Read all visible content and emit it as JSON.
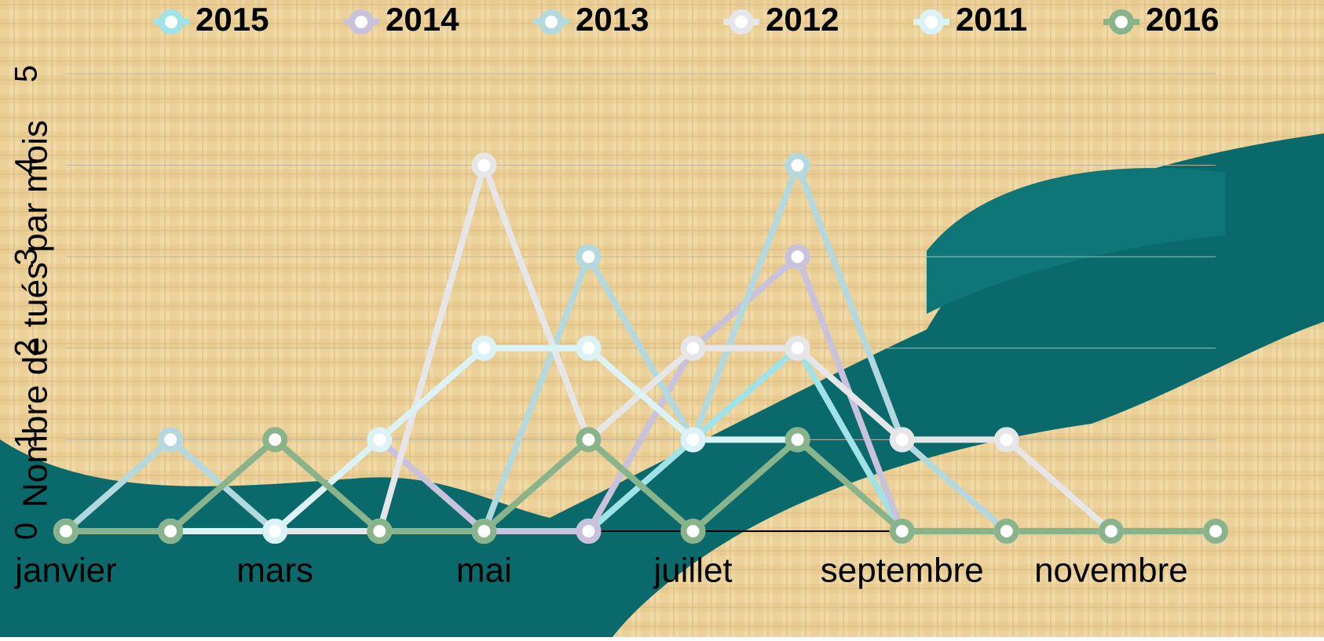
{
  "chart_data": {
    "type": "line",
    "y_label": "Nombre de tués par mois",
    "categories": [
      "janvier",
      null,
      "mars",
      null,
      "mai",
      null,
      "juillet",
      null,
      "septembre",
      null,
      "novembre",
      null
    ],
    "series": [
      {
        "name": "2015",
        "color": "#9fe3e8",
        "values": [
          0,
          0,
          0,
          0,
          0,
          0,
          1,
          2,
          0,
          0,
          0,
          0
        ]
      },
      {
        "name": "2014",
        "color": "#c9c2dd",
        "values": [
          0,
          0,
          0,
          1,
          0,
          0,
          2,
          3,
          0,
          0,
          0,
          0
        ]
      },
      {
        "name": "2013",
        "color": "#b3d9df",
        "values": [
          0,
          1,
          0,
          0,
          0,
          3,
          1,
          4,
          1,
          0,
          0,
          0
        ]
      },
      {
        "name": "2012",
        "color": "#e6e6e8",
        "values": [
          0,
          0,
          0,
          0,
          4,
          1,
          2,
          2,
          1,
          1,
          0,
          0
        ]
      },
      {
        "name": "2011",
        "color": "#dbf3f6",
        "values": [
          0,
          0,
          0,
          1,
          2,
          2,
          1,
          1,
          0,
          0,
          0,
          0
        ]
      },
      {
        "name": "2016",
        "color": "#88b38b",
        "values": [
          0,
          0,
          1,
          0,
          0,
          1,
          0,
          1,
          0,
          0,
          0,
          0
        ]
      }
    ],
    "ylim": [
      0,
      5
    ],
    "yticks": [
      0,
      1,
      2,
      3,
      4,
      5
    ],
    "grid": true,
    "legend": "top"
  }
}
